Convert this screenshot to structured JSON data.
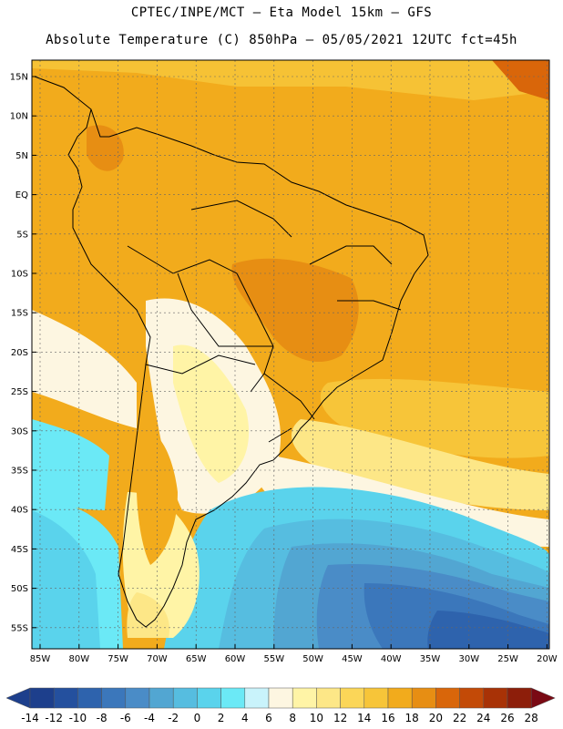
{
  "header": {
    "line1": "CPTEC/INPE/MCT –  Eta Model 15km – GFS",
    "line2": "Absolute Temperature (C) 850hPa – 05/05/2021 12UTC fct=45h"
  },
  "map": {
    "lat_labels": [
      "15N",
      "10N",
      "5N",
      "EQ",
      "5S",
      "10S",
      "15S",
      "20S",
      "25S",
      "30S",
      "35S",
      "40S",
      "45S",
      "50S",
      "55S"
    ],
    "lon_labels": [
      "85W",
      "80W",
      "75W",
      "70W",
      "65W",
      "60W",
      "55W",
      "50W",
      "45W",
      "40W",
      "35W",
      "30W",
      "25W",
      "20W"
    ]
  },
  "colorbar": {
    "labels": [
      "-14",
      "-12",
      "-10",
      "-8",
      "-6",
      "-4",
      "-2",
      "0",
      "2",
      "4",
      "6",
      "8",
      "10",
      "12",
      "14",
      "16",
      "18",
      "20",
      "22",
      "24",
      "26",
      "28"
    ],
    "colors": [
      "#1d3f8c",
      "#24509e",
      "#2e63ad",
      "#3b77bb",
      "#4a8cc7",
      "#52a6d2",
      "#56bde0",
      "#5ad3ec",
      "#6be9f6",
      "#c9f3fb",
      "#fdf6e1",
      "#fff4a6",
      "#fde787",
      "#fbd658",
      "#f7c539",
      "#f2ab1c",
      "#e78e13",
      "#d9660a",
      "#c34a07",
      "#a83206",
      "#8d1e0a",
      "#7a0a14"
    ]
  }
}
